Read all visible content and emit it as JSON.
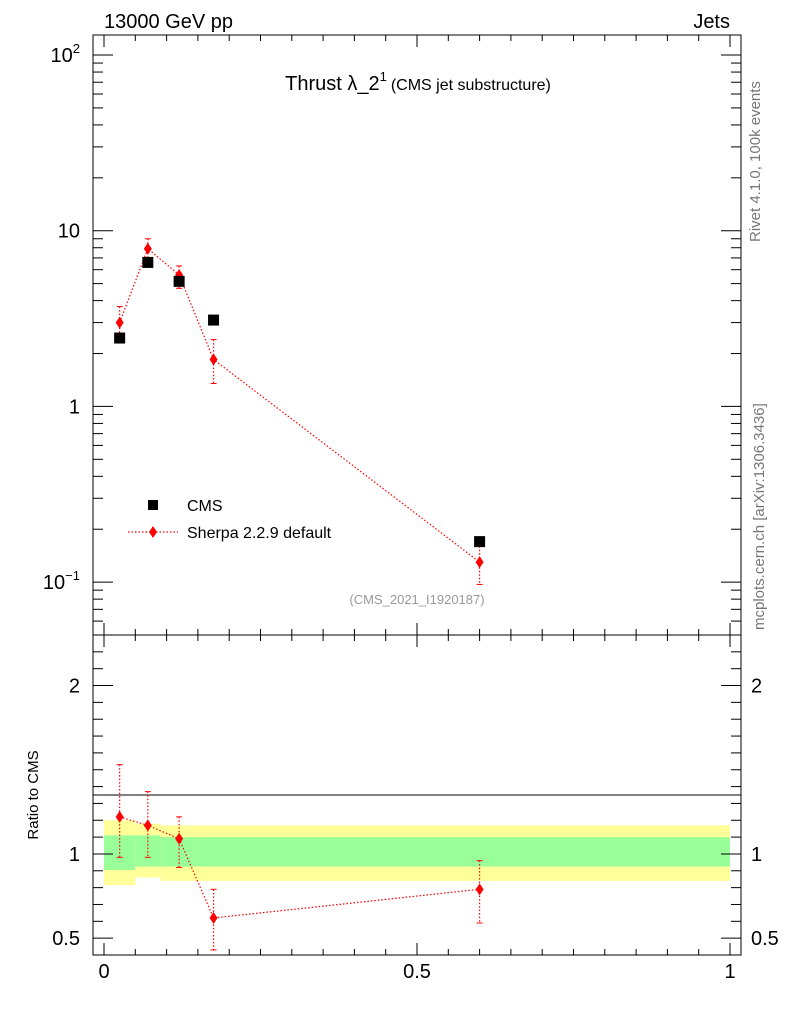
{
  "header": {
    "left": "13000 GeV pp",
    "right": "Jets",
    "side_top": "Rivet 4.1.0,  100k events",
    "side_bottom": "mcplots.cern.ch [arXiv:1306.3436]"
  },
  "chart_data": [
    {
      "type": "scatter",
      "panel": "main",
      "title": "Thrust λ_2",
      "title_sup": "1",
      "title_suffix": "(CMS jet substructure)",
      "analysis_tag": "(CMS_2021_I1920187)",
      "yscale": "log",
      "xlim": [
        0,
        1
      ],
      "ylim": [
        0.05,
        130
      ],
      "y_ticks": [
        {
          "value": 100,
          "base": "10",
          "exp": "2"
        },
        {
          "value": 10,
          "base": "10",
          "exp": ""
        },
        {
          "value": 1,
          "base": "1",
          "exp": ""
        },
        {
          "value": 0.1,
          "base": "10",
          "exp": "−1"
        }
      ],
      "legend_position": "bottom-left",
      "series": [
        {
          "name": "CMS",
          "style": "black-square",
          "color": "#000000",
          "x": [
            0.025,
            0.07,
            0.12,
            0.175,
            0.6
          ],
          "y": [
            2.45,
            6.6,
            5.15,
            3.1,
            0.17
          ]
        },
        {
          "name": "Sherpa 2.2.9 default",
          "style": "red-diamond-dotted",
          "color": "#ff0000",
          "x": [
            0.025,
            0.07,
            0.12,
            0.175,
            0.6
          ],
          "y": [
            3.0,
            7.9,
            5.6,
            1.85,
            0.13
          ],
          "err_up": [
            3.7,
            9.0,
            6.3,
            2.4,
            0.16
          ],
          "err_down": [
            2.45,
            6.9,
            4.7,
            1.35,
            0.097
          ]
        }
      ]
    },
    {
      "type": "scatter",
      "panel": "ratio",
      "ylabel": "Ratio to CMS",
      "xlim": [
        0,
        1
      ],
      "ylim": [
        0.4,
        2.3
      ],
      "x_ticks": [
        "0",
        "0.5",
        "1"
      ],
      "y_ticks": [
        {
          "value": 0.5,
          "label": "0.5"
        },
        {
          "value": 1,
          "label": "1"
        },
        {
          "value": 2,
          "label": "2"
        }
      ],
      "bands": [
        {
          "x0": 0.0,
          "x1": 0.05,
          "inner": [
            0.905,
            1.11
          ],
          "outer": [
            0.815,
            1.2
          ]
        },
        {
          "x0": 0.05,
          "x1": 0.09,
          "inner": [
            0.925,
            1.11
          ],
          "outer": [
            0.86,
            1.18
          ]
        },
        {
          "x0": 0.09,
          "x1": 0.15,
          "inner": [
            0.925,
            1.1
          ],
          "outer": [
            0.84,
            1.17
          ]
        },
        {
          "x0": 0.15,
          "x1": 1.0,
          "inner": [
            0.925,
            1.1
          ],
          "outer": [
            0.84,
            1.17
          ]
        }
      ],
      "series": [
        {
          "name": "Sherpa 2.2.9 default",
          "color": "#ff0000",
          "x": [
            0.025,
            0.07,
            0.12,
            0.175,
            0.6
          ],
          "y": [
            1.22,
            1.17,
            1.09,
            0.62,
            0.79
          ],
          "err_up": [
            1.53,
            1.37,
            1.22,
            0.79,
            0.96
          ],
          "err_down": [
            0.98,
            0.98,
            0.92,
            0.43,
            0.59
          ]
        }
      ]
    }
  ]
}
